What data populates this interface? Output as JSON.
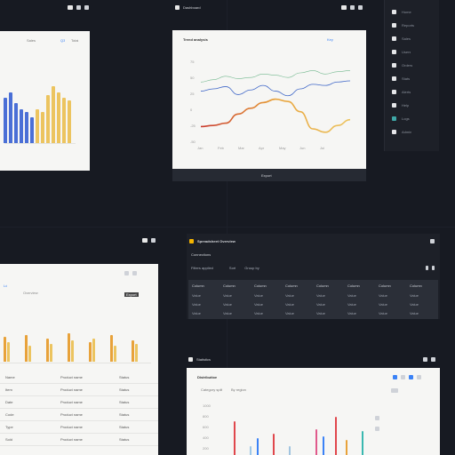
{
  "windows": {
    "bar_chart_window": {
      "title": "Sales",
      "tag": "Q3",
      "tag2": "Total"
    },
    "line_chart_window": {
      "top_title": "Dashboard",
      "title": "Trend analysis",
      "legend": "Key",
      "footer": "Export",
      "y_ticks": [
        "75",
        "50",
        "25",
        "0",
        "-25",
        "-50"
      ],
      "x_ticks": [
        "Jan",
        "Feb",
        "Mar",
        "Apr",
        "May",
        "Jun",
        "Jul"
      ]
    },
    "side_list": {
      "items": [
        "Home",
        "Reports",
        "Sales",
        "Users",
        "Orders",
        "Stats",
        "Alerts",
        "Help",
        "Logs",
        "Admin"
      ]
    },
    "table_window": {
      "header_link": "Ld",
      "tab1": "Overview",
      "tab_button": "Export",
      "col_a": [
        "Name",
        "Item",
        "Date",
        "Code",
        "Type",
        "Sold"
      ],
      "col_b": [
        "Product name",
        "Product name",
        "Product name",
        "Product name",
        "Product name",
        "Product name"
      ],
      "col_c": [
        "Status",
        "Status",
        "Status",
        "Status",
        "Status",
        "Status"
      ]
    },
    "dark_table_window": {
      "title": "Spreadsheet Overview",
      "subtitle": "Connections",
      "filter1": "Filters applied",
      "filter2": "Sort",
      "filter3": "Group by",
      "headers": [
        "Column",
        "Column",
        "Column",
        "Column",
        "Column",
        "Column",
        "Column",
        "Column"
      ],
      "rows": [
        [
          "Value",
          "Value",
          "Value",
          "Value",
          "Value",
          "Value",
          "Value",
          "Value"
        ],
        [
          "Value",
          "Value",
          "Value",
          "Value",
          "Value",
          "Value",
          "Value",
          "Value"
        ],
        [
          "Value",
          "Value",
          "Value",
          "Value",
          "Value",
          "Value",
          "Value",
          "Value"
        ]
      ]
    },
    "bottom_chart_window": {
      "top_title": "Statistics",
      "title": "Distribution",
      "sub1": "Category split",
      "sub2": "By region",
      "y_ticks": [
        "1000",
        "800",
        "600",
        "400",
        "200"
      ]
    }
  },
  "colors": {
    "blue": "#4a6fd6",
    "gold": "#ecc45f",
    "orange": "#e8a23a",
    "red": "#c93a2e",
    "line_blue": "#3f67c8",
    "line_green": "#72b88e",
    "line_pink": "#e7a1b5"
  },
  "chart_data": [
    {
      "type": "bar",
      "series": [
        {
          "values": [
            80,
            90,
            70,
            60,
            55,
            45,
            60,
            55,
            85,
            100,
            90,
            80,
            75
          ]
        }
      ],
      "ylim": [
        0,
        110
      ]
    },
    {
      "type": "line",
      "x": [
        0,
        1,
        2,
        3,
        4,
        5,
        6,
        7,
        8,
        9,
        10,
        11,
        12
      ],
      "series": [
        {
          "values": [
            -42,
            -40,
            -36,
            -20,
            -10,
            0,
            6,
            2,
            -16,
            -46,
            -52,
            -40,
            -30
          ]
        },
        {
          "values": [
            20,
            24,
            28,
            14,
            22,
            30,
            20,
            12,
            24,
            32,
            30,
            36,
            38
          ]
        },
        {
          "values": [
            36,
            40,
            46,
            42,
            44,
            50,
            48,
            44,
            52,
            56,
            50,
            54,
            56
          ]
        }
      ],
      "ylim": [
        -60,
        80
      ]
    },
    {
      "type": "bar",
      "series": [
        {
          "values": [
            28,
            22,
            30,
            18,
            26,
            20,
            32,
            24,
            22,
            26,
            30,
            18,
            24,
            20
          ]
        }
      ],
      "ylim": [
        0,
        40
      ]
    },
    {
      "type": "bar",
      "series": [
        {
          "values": [
            40,
            10,
            20,
            25,
            10,
            30,
            22,
            45,
            18,
            28
          ]
        }
      ],
      "ylim": [
        0,
        50
      ]
    }
  ]
}
